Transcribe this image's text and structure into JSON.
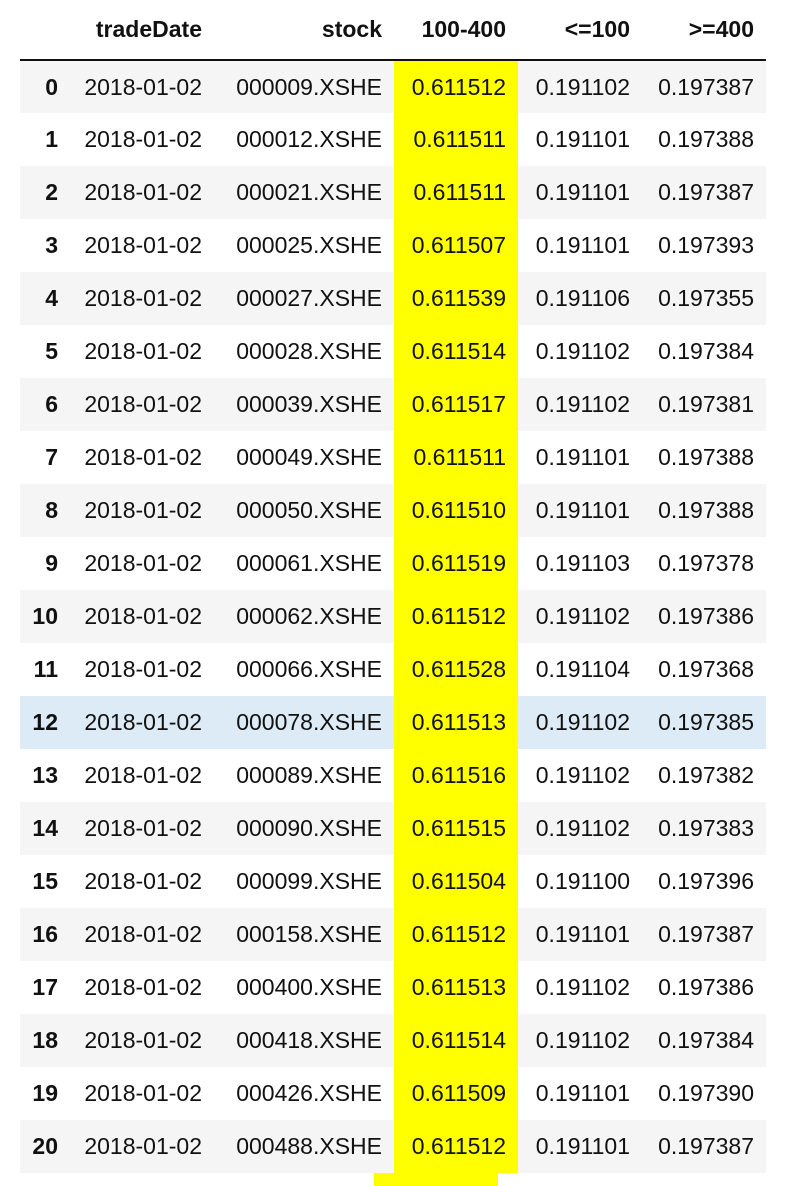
{
  "table": {
    "columns": [
      "",
      "tradeDate",
      "stock",
      "100-400",
      "<=100",
      ">=400"
    ],
    "highlight_column": "100-400",
    "highlight_color": "#ffff00",
    "hover_row_color": "#ddebf7",
    "hovered_row_index": "12",
    "rows": [
      [
        "0",
        "2018-01-02",
        "000009.XSHE",
        "0.611512",
        "0.191102",
        "0.197387"
      ],
      [
        "1",
        "2018-01-02",
        "000012.XSHE",
        "0.611511",
        "0.191101",
        "0.197388"
      ],
      [
        "2",
        "2018-01-02",
        "000021.XSHE",
        "0.611511",
        "0.191101",
        "0.197387"
      ],
      [
        "3",
        "2018-01-02",
        "000025.XSHE",
        "0.611507",
        "0.191101",
        "0.197393"
      ],
      [
        "4",
        "2018-01-02",
        "000027.XSHE",
        "0.611539",
        "0.191106",
        "0.197355"
      ],
      [
        "5",
        "2018-01-02",
        "000028.XSHE",
        "0.611514",
        "0.191102",
        "0.197384"
      ],
      [
        "6",
        "2018-01-02",
        "000039.XSHE",
        "0.611517",
        "0.191102",
        "0.197381"
      ],
      [
        "7",
        "2018-01-02",
        "000049.XSHE",
        "0.611511",
        "0.191101",
        "0.197388"
      ],
      [
        "8",
        "2018-01-02",
        "000050.XSHE",
        "0.611510",
        "0.191101",
        "0.197388"
      ],
      [
        "9",
        "2018-01-02",
        "000061.XSHE",
        "0.611519",
        "0.191103",
        "0.197378"
      ],
      [
        "10",
        "2018-01-02",
        "000062.XSHE",
        "0.611512",
        "0.191102",
        "0.197386"
      ],
      [
        "11",
        "2018-01-02",
        "000066.XSHE",
        "0.611528",
        "0.191104",
        "0.197368"
      ],
      [
        "12",
        "2018-01-02",
        "000078.XSHE",
        "0.611513",
        "0.191102",
        "0.197385"
      ],
      [
        "13",
        "2018-01-02",
        "000089.XSHE",
        "0.611516",
        "0.191102",
        "0.197382"
      ],
      [
        "14",
        "2018-01-02",
        "000090.XSHE",
        "0.611515",
        "0.191102",
        "0.197383"
      ],
      [
        "15",
        "2018-01-02",
        "000099.XSHE",
        "0.611504",
        "0.191100",
        "0.197396"
      ],
      [
        "16",
        "2018-01-02",
        "000158.XSHE",
        "0.611512",
        "0.191101",
        "0.197387"
      ],
      [
        "17",
        "2018-01-02",
        "000400.XSHE",
        "0.611513",
        "0.191102",
        "0.197386"
      ],
      [
        "18",
        "2018-01-02",
        "000418.XSHE",
        "0.611514",
        "0.191102",
        "0.197384"
      ],
      [
        "19",
        "2018-01-02",
        "000426.XSHE",
        "0.611509",
        "0.191101",
        "0.197390"
      ],
      [
        "20",
        "2018-01-02",
        "000488.XSHE",
        "0.611512",
        "0.191101",
        "0.197387"
      ]
    ]
  }
}
